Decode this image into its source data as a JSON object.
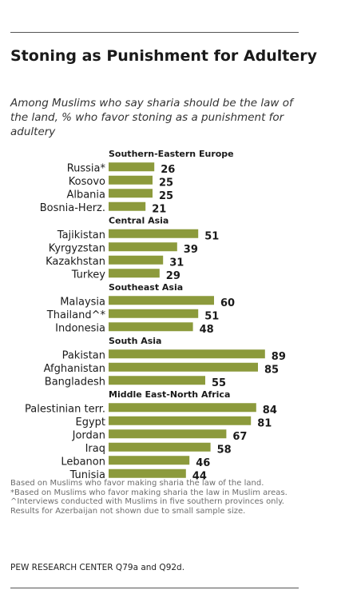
{
  "title": "Stoning as Punishment for Adultery",
  "subtitle": "Among Muslims who say sharia should be the law of the land, % who favor stoning as a punishment for adultery",
  "notes": [
    "Based on Muslims who favor making sharia the law of the land.",
    "*Based on Muslims who favor making sharia the law in Muslim areas.",
    "^Interviews conducted with Muslims in five southern provinces only.",
    "Results for Azerbaijan not shown due to small sample size."
  ],
  "source": "PEW RESEARCH CENTER Q79a and Q92d.",
  "chart_data": {
    "type": "bar",
    "orientation": "horizontal",
    "bar_color": "#8c9a3c",
    "groups": [
      {
        "name": "Southern-Eastern  Europe",
        "categories": [
          "Russia*",
          "Kosovo",
          "Albania",
          "Bosnia-Herz."
        ],
        "values": [
          26,
          25,
          25,
          21
        ]
      },
      {
        "name": "Central Asia",
        "categories": [
          "Tajikistan",
          "Kyrgyzstan",
          "Kazakhstan",
          "Turkey"
        ],
        "values": [
          51,
          39,
          31,
          29
        ]
      },
      {
        "name": "Southeast Asia",
        "categories": [
          "Malaysia",
          "Thailand^*",
          "Indonesia"
        ],
        "values": [
          60,
          51,
          48
        ]
      },
      {
        "name": "South Asia",
        "categories": [
          "Pakistan",
          "Afghanistan",
          "Bangladesh"
        ],
        "values": [
          89,
          85,
          55
        ]
      },
      {
        "name": "Middle East-North Africa",
        "categories": [
          "Palestinian terr.",
          "Egypt",
          "Jordan",
          "Iraq",
          "Lebanon",
          "Tunisia"
        ],
        "values": [
          84,
          81,
          67,
          58,
          46,
          44
        ]
      }
    ],
    "xlim": [
      0,
      100
    ]
  }
}
